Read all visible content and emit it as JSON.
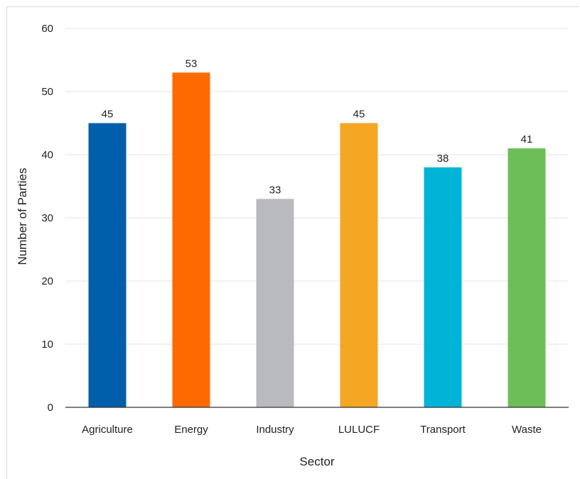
{
  "chart_data": {
    "type": "bar",
    "categories": [
      "Agriculture",
      "Energy",
      "Industry",
      "LULUCF",
      "Transport",
      "Waste"
    ],
    "values": [
      45,
      53,
      33,
      45,
      38,
      41
    ],
    "data_labels": [
      "45",
      "53",
      "33",
      "45",
      "38",
      "41"
    ],
    "colors": [
      "#005eaa",
      "#ff6a00",
      "#b8babd",
      "#f5a623",
      "#00b4d8",
      "#6dbe57"
    ],
    "title": "",
    "xlabel": "Sector",
    "ylabel": "Number of Parties",
    "ylim": [
      0,
      60
    ],
    "yticks": [
      "0",
      "10",
      "20",
      "30",
      "40",
      "50",
      "60"
    ],
    "grid": true,
    "legend": "none"
  }
}
